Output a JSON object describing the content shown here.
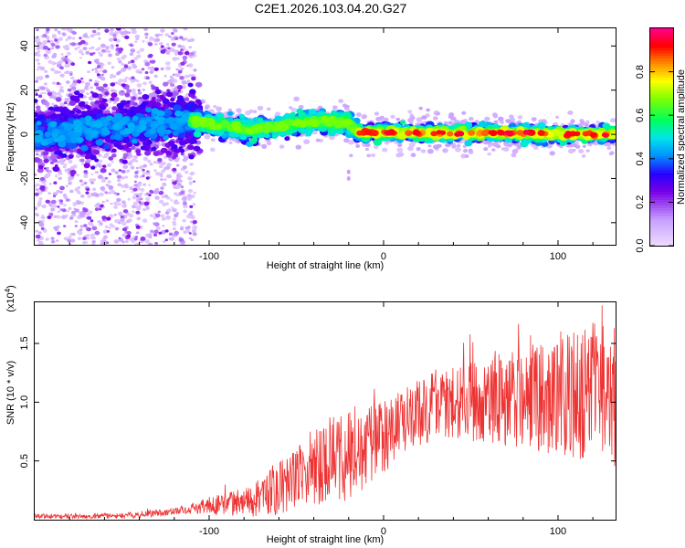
{
  "title": "C2E1.2026.103.04.20.G27",
  "chart_data": [
    {
      "type": "heatmap",
      "name": "spectrogram",
      "xlabel": "Height of straight line (km)",
      "ylabel": "Frequency (Hz)",
      "xlim": [
        -200,
        133
      ],
      "ylim": [
        -50,
        48
      ],
      "xticks": [
        -100,
        0,
        100
      ],
      "yticks": [
        -40,
        -20,
        0,
        20,
        40
      ],
      "colorbar": {
        "label": "Normalized spectral amplitude",
        "range": [
          0,
          1
        ],
        "ticks": [
          0.0,
          0.2,
          0.4,
          0.6,
          0.8
        ],
        "tick_labels": [
          "0.0",
          "0.2",
          "0.4",
          "0.6",
          "0.8"
        ]
      },
      "features": {
        "noise_region_x": [
          -200,
          -110
        ],
        "tone_band_centers_hz": [
          [
            -200,
            0
          ],
          [
            -110,
            6
          ],
          [
            -75,
            2
          ],
          [
            -40,
            6
          ],
          [
            -20,
            5
          ],
          [
            -15,
            1
          ],
          [
            133,
            0
          ]
        ],
        "outlier_points": [
          [
            -20,
            -17
          ],
          [
            -20,
            -20
          ]
        ]
      }
    },
    {
      "type": "line",
      "name": "snr",
      "xlabel": "Height of straight line (km)",
      "ylabel": "SNR (10 * v/v)",
      "yscale_label": "(x10",
      "yscale_exp": "4",
      "yscale_suffix": ")",
      "xlim": [
        -200,
        133
      ],
      "ylim": [
        0,
        1.85
      ],
      "xticks": [
        -100,
        0,
        100
      ],
      "yticks": [
        0.5,
        1.0,
        1.5
      ],
      "ytick_labels": [
        "0.5",
        "1.0",
        "1.5"
      ],
      "color": "#ee3333",
      "envelope": [
        [
          -200,
          0.03
        ],
        [
          -150,
          0.03
        ],
        [
          -120,
          0.07
        ],
        [
          -110,
          0.1
        ],
        [
          -80,
          0.15
        ],
        [
          -60,
          0.25
        ],
        [
          -45,
          0.4
        ],
        [
          -30,
          0.52
        ],
        [
          -20,
          0.55
        ],
        [
          -10,
          0.62
        ],
        [
          0,
          0.7
        ],
        [
          10,
          0.82
        ],
        [
          20,
          0.9
        ],
        [
          30,
          0.98
        ],
        [
          40,
          1.0
        ],
        [
          60,
          1.02
        ],
        [
          80,
          1.05
        ],
        [
          100,
          1.05
        ],
        [
          115,
          1.1
        ],
        [
          133,
          1.05
        ]
      ],
      "spread": [
        [
          -200,
          0.02
        ],
        [
          -120,
          0.03
        ],
        [
          -80,
          0.12
        ],
        [
          -40,
          0.35
        ],
        [
          -20,
          0.4
        ],
        [
          0,
          0.3
        ],
        [
          40,
          0.3
        ],
        [
          80,
          0.45
        ],
        [
          110,
          0.6
        ],
        [
          133,
          0.6
        ]
      ]
    }
  ]
}
